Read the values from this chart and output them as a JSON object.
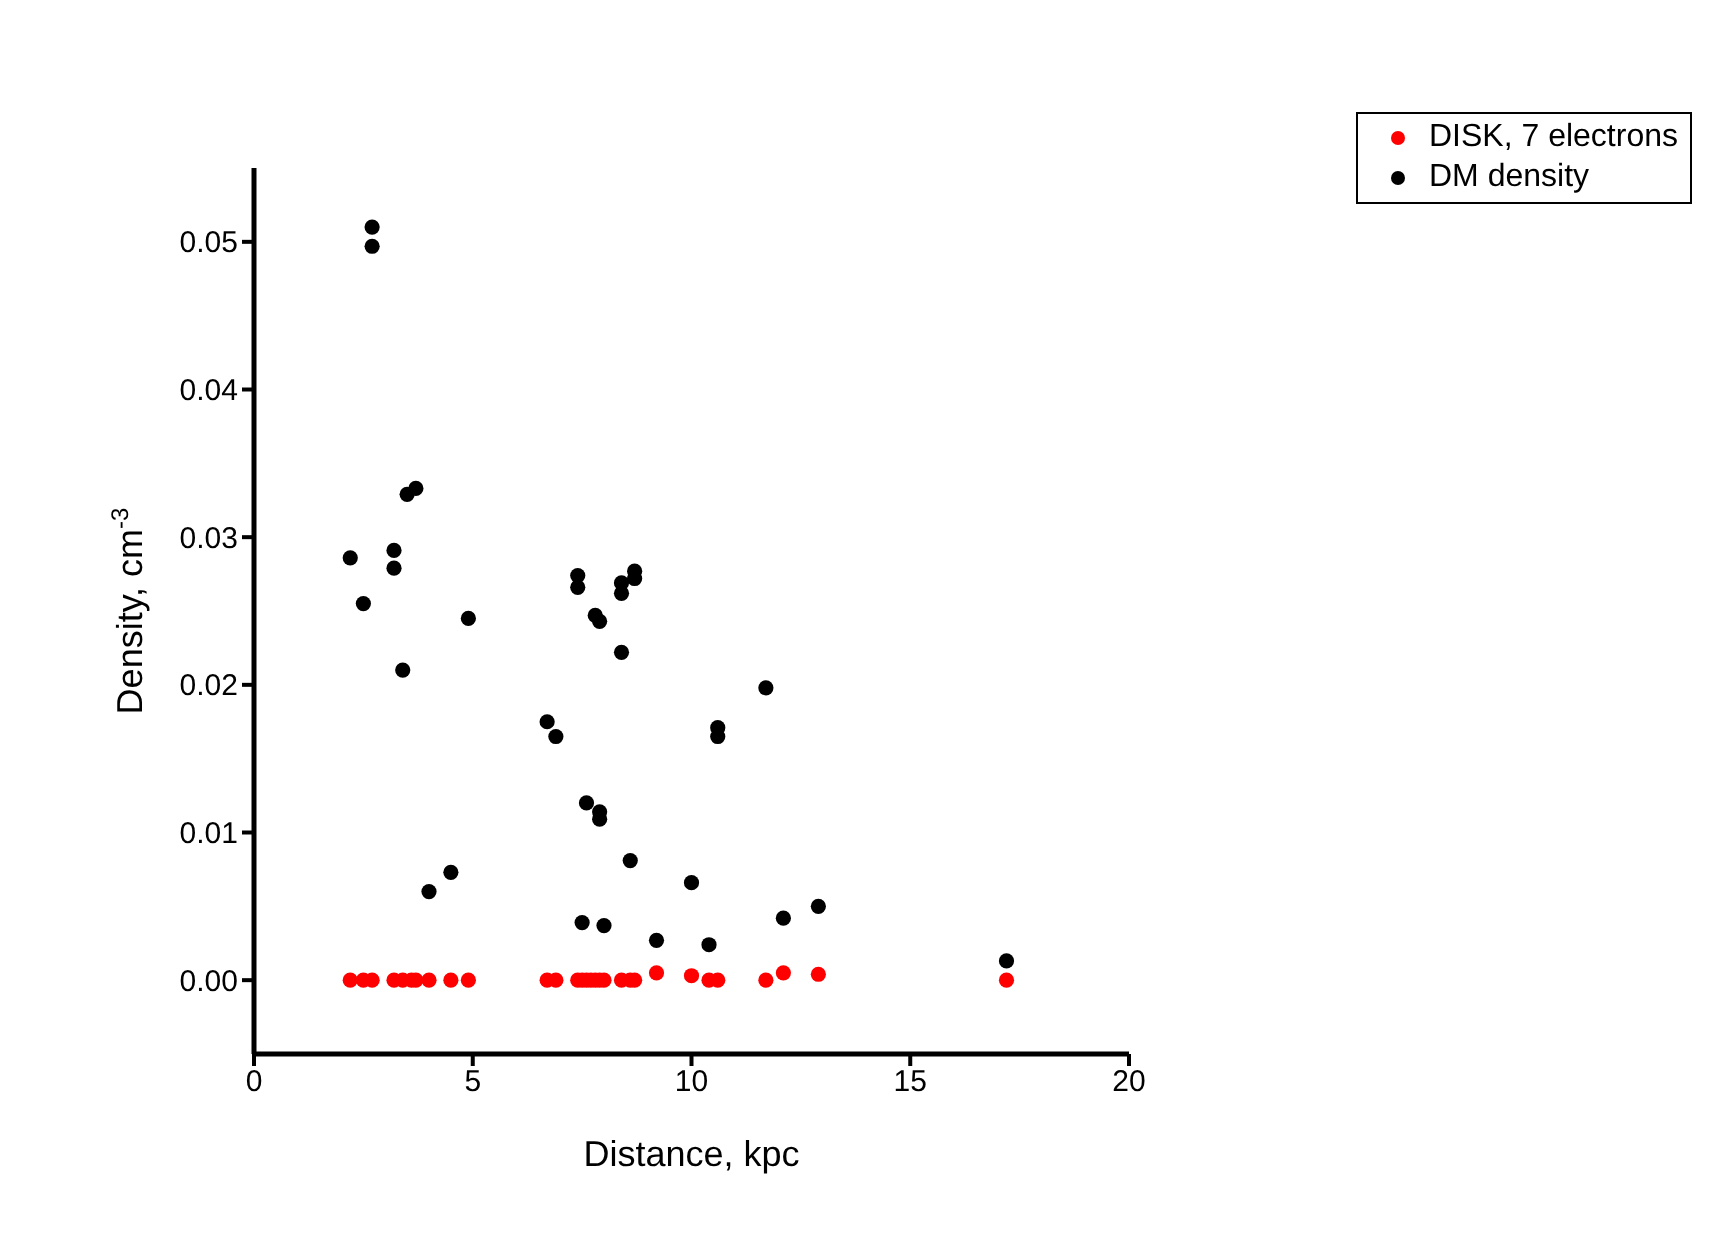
{
  "chart_data": {
    "type": "scatter",
    "xlabel": "Distance, kpc",
    "ylabel": "Density, cm$^{-3}$",
    "xlim": [
      0,
      20
    ],
    "xticks": [
      0,
      5,
      10,
      15,
      20
    ],
    "ylim": [
      -0.005,
      0.055
    ],
    "yticks": [
      {
        "value": 0,
        "label": "0.00"
      },
      {
        "value": 0.01,
        "label": "0.01"
      },
      {
        "value": 0.02,
        "label": "0.02"
      },
      {
        "value": 0.03,
        "label": "0.03"
      },
      {
        "value": 0.04,
        "label": "0.04"
      },
      {
        "value": 0.05,
        "label": "0.05"
      }
    ],
    "grid": false,
    "legend": "top right",
    "marker": "circle",
    "series": [
      {
        "name": "DISK, 7 electrons",
        "color": "#ff0000",
        "x": [
          2.2,
          2.5,
          2.7,
          3.2,
          3.4,
          3.6,
          3.7,
          4.0,
          4.5,
          4.9,
          6.7,
          6.9,
          7.4,
          7.5,
          7.6,
          7.7,
          7.8,
          7.9,
          8.0,
          8.4,
          8.6,
          8.7,
          9.2,
          10.0,
          10.4,
          10.6,
          11.7,
          12.1,
          12.9,
          17.2
        ],
        "values": [
          0,
          0,
          0,
          0,
          0,
          0,
          0,
          0,
          0,
          0,
          0,
          0,
          0,
          0,
          0,
          0,
          0,
          0,
          0,
          0,
          0,
          0,
          0.0005,
          0.0003,
          0,
          0,
          0,
          0.0005,
          0.0004,
          0
        ]
      },
      {
        "name": "DM density",
        "color": "#000000",
        "x": [
          2.2,
          2.5,
          2.7,
          2.7,
          3.2,
          3.2,
          3.4,
          3.5,
          3.7,
          4.0,
          4.5,
          4.9,
          6.7,
          6.9,
          7.6,
          7.4,
          7.4,
          7.8,
          7.9,
          7.9,
          7.9,
          7.5,
          8.0,
          8.4,
          8.4,
          8.4,
          8.7,
          8.7,
          8.6,
          9.2,
          10.0,
          10.4,
          10.6,
          10.6,
          11.7,
          12.1,
          12.9,
          17.2
        ],
        "values": [
          0.0286,
          0.0255,
          0.051,
          0.0497,
          0.0291,
          0.0279,
          0.021,
          0.0329,
          0.0333,
          0.006,
          0.0073,
          0.0245,
          0.0175,
          0.0165,
          0.012,
          0.0274,
          0.0266,
          0.0247,
          0.0243,
          0.0114,
          0.0109,
          0.0039,
          0.0037,
          0.0222,
          0.0269,
          0.0262,
          0.0277,
          0.0272,
          0.0081,
          0.0027,
          0.0066,
          0.0024,
          0.0171,
          0.0165,
          0.0198,
          0.0042,
          0.005,
          0.0013
        ]
      }
    ]
  }
}
